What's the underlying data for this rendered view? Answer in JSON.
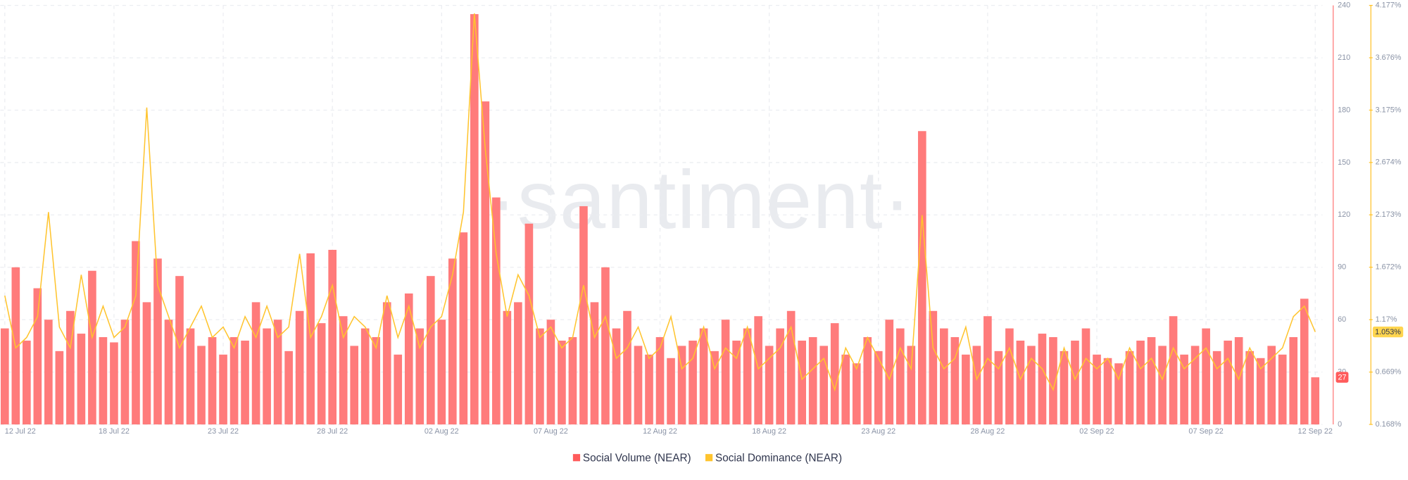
{
  "chart_data": {
    "type": "bar",
    "watermark": "·santiment·",
    "categories": [
      "12 Jul 22",
      null,
      null,
      null,
      null,
      null,
      null,
      null,
      null,
      null,
      "18 Jul 22",
      null,
      null,
      null,
      null,
      null,
      null,
      null,
      null,
      null,
      "23 Jul 22",
      null,
      null,
      null,
      null,
      null,
      null,
      null,
      null,
      null,
      "28 Jul 22",
      null,
      null,
      null,
      null,
      null,
      null,
      null,
      null,
      null,
      "02 Aug 22",
      null,
      null,
      null,
      null,
      null,
      null,
      null,
      null,
      null,
      "07 Aug 22",
      null,
      null,
      null,
      null,
      null,
      null,
      null,
      null,
      null,
      "12 Aug 22",
      null,
      null,
      null,
      null,
      null,
      null,
      null,
      null,
      null,
      "18 Aug 22",
      null,
      null,
      null,
      null,
      null,
      null,
      null,
      null,
      null,
      "23 Aug 22",
      null,
      null,
      null,
      null,
      null,
      null,
      null,
      null,
      null,
      "28 Aug 22",
      null,
      null,
      null,
      null,
      null,
      null,
      null,
      null,
      null,
      "02 Sep 22",
      null,
      null,
      null,
      null,
      null,
      null,
      null,
      null,
      null,
      "07 Sep 22",
      null,
      null,
      null,
      null,
      null,
      null,
      null,
      null,
      null,
      "12 Sep 22"
    ],
    "series": [
      {
        "name": "Social Volume (NEAR)",
        "type": "bar",
        "color": "#ff7b7b",
        "axis": "y",
        "current_label": "27",
        "values": [
          55,
          90,
          48,
          78,
          60,
          42,
          65,
          52,
          88,
          50,
          47,
          60,
          105,
          70,
          95,
          60,
          85,
          55,
          45,
          50,
          40,
          50,
          48,
          70,
          55,
          60,
          42,
          65,
          98,
          58,
          100,
          62,
          45,
          55,
          50,
          70,
          40,
          75,
          55,
          85,
          60,
          95,
          110,
          235,
          185,
          130,
          65,
          70,
          115,
          55,
          60,
          48,
          50,
          125,
          70,
          90,
          55,
          65,
          45,
          40,
          50,
          38,
          45,
          48,
          55,
          42,
          60,
          48,
          55,
          62,
          45,
          55,
          65,
          48,
          50,
          45,
          58,
          40,
          35,
          50,
          42,
          60,
          55,
          45,
          168,
          65,
          55,
          50,
          40,
          45,
          62,
          42,
          55,
          48,
          45,
          52,
          50,
          42,
          48,
          55,
          40,
          38,
          35,
          42,
          48,
          50,
          45,
          62,
          40,
          45,
          55,
          42,
          48,
          50,
          42,
          38,
          45,
          40,
          50,
          72,
          27
        ]
      },
      {
        "name": "Social Dominance (NEAR)",
        "type": "line",
        "color": "#ffc42e",
        "axis": "y2",
        "current_label": "1.053%",
        "values": [
          1.4,
          0.9,
          1.0,
          1.2,
          2.2,
          1.1,
          0.9,
          1.6,
          1.0,
          1.3,
          1.0,
          1.1,
          1.4,
          3.2,
          1.5,
          1.2,
          0.9,
          1.1,
          1.3,
          1.0,
          1.1,
          0.9,
          1.2,
          1.0,
          1.3,
          1.0,
          1.1,
          1.8,
          1.0,
          1.2,
          1.5,
          1.0,
          1.2,
          1.1,
          0.9,
          1.4,
          1.0,
          1.3,
          0.9,
          1.1,
          1.2,
          1.6,
          2.2,
          4.1,
          2.8,
          1.8,
          1.2,
          1.6,
          1.4,
          1.0,
          1.1,
          0.9,
          1.0,
          1.5,
          1.0,
          1.2,
          0.8,
          0.9,
          1.1,
          0.8,
          0.9,
          1.2,
          0.7,
          0.8,
          1.1,
          0.7,
          0.9,
          0.8,
          1.1,
          0.7,
          0.8,
          0.9,
          1.1,
          0.6,
          0.7,
          0.8,
          0.5,
          0.9,
          0.7,
          1.0,
          0.8,
          0.6,
          0.9,
          0.7,
          2.17,
          0.9,
          0.7,
          0.8,
          1.1,
          0.6,
          0.8,
          0.7,
          0.9,
          0.6,
          0.8,
          0.7,
          0.5,
          0.9,
          0.6,
          0.8,
          0.7,
          0.8,
          0.6,
          0.9,
          0.7,
          0.8,
          0.6,
          0.9,
          0.7,
          0.8,
          0.9,
          0.7,
          0.8,
          0.6,
          0.9,
          0.7,
          0.8,
          0.9,
          1.2,
          1.3,
          1.053
        ]
      }
    ],
    "ylim": [
      0,
      240
    ],
    "yticks": [
      0,
      30,
      60,
      90,
      120,
      150,
      180,
      210,
      240
    ],
    "y2lim": [
      0.168,
      4.177
    ],
    "y2ticks": [
      {
        "value": 0.168,
        "label": "0.168%"
      },
      {
        "value": 0.669,
        "label": "0.669%"
      },
      {
        "value": 1.17,
        "label": "1.17%"
      },
      {
        "value": 1.672,
        "label": "1.672%"
      },
      {
        "value": 2.173,
        "label": "2.173%"
      },
      {
        "value": 2.674,
        "label": "2.674%"
      },
      {
        "value": 3.175,
        "label": "3.175%"
      },
      {
        "value": 3.676,
        "label": "3.676%"
      },
      {
        "value": 4.177,
        "label": "4.177%"
      }
    ],
    "grid": true
  }
}
